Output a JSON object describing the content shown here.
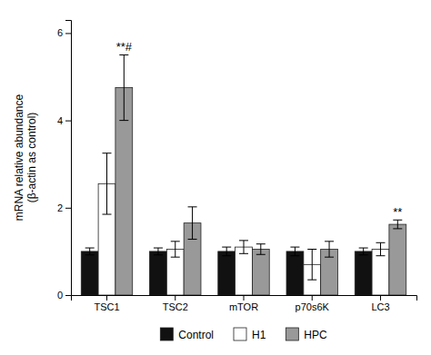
{
  "chart_data": {
    "type": "bar",
    "categories": [
      "TSC1",
      "TSC2",
      "mTOR",
      "p70s6K",
      "LC3"
    ],
    "series": [
      {
        "name": "Control",
        "color": "#111111",
        "values": [
          1.0,
          1.0,
          1.0,
          1.0,
          1.0
        ],
        "errors": [
          0.08,
          0.08,
          0.1,
          0.1,
          0.08
        ]
      },
      {
        "name": "H1",
        "color": "#ffffff",
        "values": [
          2.55,
          1.05,
          1.1,
          0.7,
          1.05
        ],
        "errors": [
          0.7,
          0.18,
          0.15,
          0.35,
          0.15
        ]
      },
      {
        "name": "HPC",
        "color": "#999999",
        "values": [
          4.75,
          1.65,
          1.05,
          1.05,
          1.62
        ],
        "errors": [
          0.75,
          0.37,
          0.12,
          0.18,
          0.1
        ]
      }
    ],
    "ylabel": [
      "mRNA relative abundance",
      "(β-actin as control)"
    ],
    "annotations": [
      {
        "text": "**#",
        "category": "TSC1",
        "series": "HPC"
      },
      {
        "text": "**",
        "category": "LC3",
        "series": "HPC"
      }
    ],
    "ylim": [
      0,
      6.3
    ],
    "yticks": [
      0,
      2,
      4,
      6
    ],
    "grid": false,
    "legend": "bottom"
  }
}
